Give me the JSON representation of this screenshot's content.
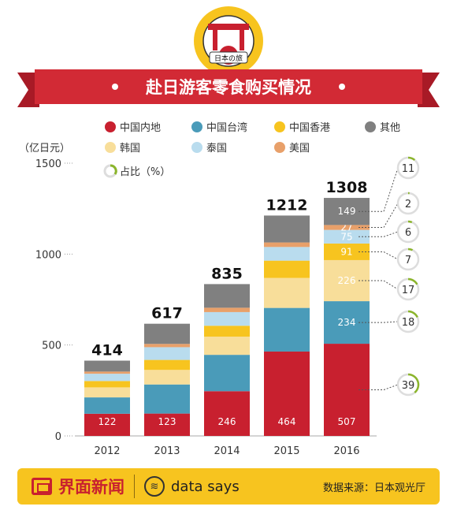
{
  "header": {
    "title": "赴日游客零食购买情况",
    "badge_text": "日本の旅"
  },
  "legend": [
    {
      "label": "中国内地",
      "color": "#c8202f"
    },
    {
      "label": "中国台湾",
      "color": "#4a9bb9"
    },
    {
      "label": "中国香港",
      "color": "#f7c41f"
    },
    {
      "label": "其他",
      "color": "#808080"
    },
    {
      "label": "韩国",
      "color": "#f8de9a"
    },
    {
      "label": "泰国",
      "color": "#b9dcee"
    },
    {
      "label": "美国",
      "color": "#e8a06a"
    }
  ],
  "share_legend_label": "占比（%）",
  "chart_data": {
    "type": "bar",
    "stacked": true,
    "ylabel": "（亿日元）",
    "ylim": [
      0,
      1500
    ],
    "yticks": [
      0,
      500,
      1000,
      1500
    ],
    "categories": [
      "2012",
      "2013",
      "2014",
      "2015",
      "2016"
    ],
    "totals": [
      414,
      617,
      835,
      1212,
      1308
    ],
    "series": [
      {
        "name": "中国内地",
        "color": "#c8202f",
        "values": [
          122,
          123,
          246,
          464,
          507
        ]
      },
      {
        "name": "中国台湾",
        "color": "#4a9bb9",
        "values": [
          90,
          160,
          200,
          240,
          234
        ]
      },
      {
        "name": "韩国",
        "color": "#f8de9a",
        "values": [
          55,
          80,
          100,
          165,
          226
        ]
      },
      {
        "name": "中国香港",
        "color": "#f7c41f",
        "values": [
          35,
          55,
          60,
          95,
          91
        ]
      },
      {
        "name": "泰国",
        "color": "#b9dcee",
        "values": [
          40,
          70,
          75,
          75,
          75
        ]
      },
      {
        "name": "美国",
        "color": "#e8a06a",
        "values": [
          12,
          18,
          24,
          25,
          27
        ]
      },
      {
        "name": "其他",
        "color": "#808080",
        "values": [
          60,
          111,
          130,
          148,
          149
        ]
      }
    ],
    "data_labels": {
      "中国内地": [
        "122",
        "123",
        "246",
        "464",
        "507"
      ],
      "中国台湾": [
        "",
        "",
        "",
        "",
        "234"
      ],
      "韩国": [
        "",
        "",
        "",
        "",
        "226"
      ],
      "中国香港": [
        "",
        "",
        "",
        "",
        "91"
      ],
      "泰国": [
        "",
        "",
        "",
        "",
        "75"
      ],
      "美国": [
        "",
        "",
        "",
        "",
        "27"
      ],
      "其他": [
        "",
        "",
        "",
        "",
        "149"
      ]
    },
    "share_2016": [
      {
        "series": "其他",
        "pct": 11
      },
      {
        "series": "美国",
        "pct": 2
      },
      {
        "series": "泰国",
        "pct": 6
      },
      {
        "series": "中国香港",
        "pct": 7
      },
      {
        "series": "韩国",
        "pct": 17
      },
      {
        "series": "中国台湾",
        "pct": 18
      },
      {
        "series": "中国内地",
        "pct": 39
      }
    ],
    "watermark": "界面新闻 data says"
  },
  "footer": {
    "brand": "界面新闻",
    "datasays": "data says",
    "source": "数据来源：日本观光厅"
  }
}
